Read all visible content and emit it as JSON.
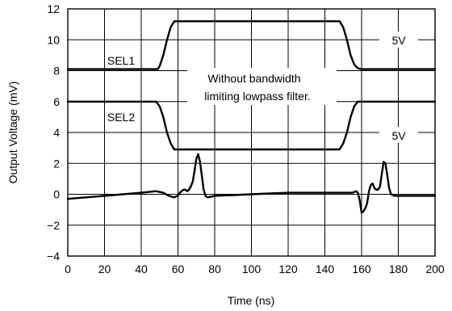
{
  "chart_data": {
    "type": "line",
    "xlabel": "Time (ns)",
    "ylabel": "Output Voltage (mV)",
    "xlim": [
      0,
      200
    ],
    "ylim": [
      -4,
      12
    ],
    "xticks": [
      0,
      20,
      40,
      60,
      80,
      100,
      120,
      140,
      160,
      180,
      200
    ],
    "yticks": [
      -4,
      -2,
      0,
      2,
      4,
      6,
      8,
      10,
      12
    ],
    "ytick_labels": [
      "−4",
      "−2",
      "0",
      "2",
      "4",
      "6",
      "8",
      "10",
      "12"
    ],
    "grid": true,
    "series": [
      {
        "key": "sel1",
        "x": [
          0,
          49,
          50,
          52,
          54,
          56,
          58,
          60,
          148,
          150,
          152,
          154,
          156,
          158,
          160,
          200
        ],
        "y": [
          8.1,
          8.1,
          8.3,
          9.0,
          10.0,
          10.8,
          11.2,
          11.2,
          11.2,
          10.8,
          10.0,
          9.0,
          8.4,
          8.15,
          8.1,
          8.1
        ]
      },
      {
        "key": "sel2",
        "x": [
          0,
          48,
          50,
          52,
          54,
          56,
          58,
          60,
          148,
          150,
          152,
          154,
          156,
          158,
          160,
          200
        ],
        "y": [
          6.0,
          6.0,
          5.7,
          5.0,
          4.0,
          3.3,
          2.9,
          2.9,
          2.9,
          3.3,
          4.0,
          5.0,
          5.7,
          6.0,
          6.0,
          6.0
        ]
      },
      {
        "key": "output",
        "x": [
          0,
          10,
          20,
          30,
          40,
          48,
          52,
          55,
          58,
          60,
          61,
          63,
          64,
          65,
          66,
          67,
          68,
          69,
          70,
          71,
          72,
          73,
          74,
          75,
          76,
          78,
          80,
          90,
          100,
          110,
          120,
          130,
          140,
          150,
          155,
          157,
          158,
          159,
          160,
          161,
          162,
          163,
          164,
          165,
          166,
          167,
          168,
          169,
          170,
          171,
          172,
          173,
          174,
          175,
          176,
          178,
          180,
          190,
          200
        ],
        "y": [
          -0.3,
          -0.2,
          -0.1,
          0.0,
          0.1,
          0.2,
          0.1,
          -0.1,
          -0.2,
          -0.1,
          0.1,
          0.3,
          0.3,
          0.2,
          0.3,
          0.5,
          0.8,
          1.5,
          2.3,
          2.6,
          2.1,
          1.2,
          0.3,
          -0.1,
          -0.2,
          -0.15,
          -0.1,
          -0.05,
          0.0,
          0.05,
          0.1,
          0.1,
          0.1,
          0.1,
          0.1,
          0.2,
          0.1,
          -0.4,
          -1.2,
          -1.1,
          -0.9,
          -0.6,
          0.2,
          0.6,
          0.7,
          0.4,
          0.3,
          0.3,
          0.5,
          1.3,
          2.1,
          2.0,
          1.2,
          0.4,
          0.0,
          -0.1,
          -0.1,
          -0.1,
          -0.1
        ]
      }
    ],
    "annotations": {
      "sel1": "SEL1",
      "sel2": "SEL2",
      "level_upper": "5V",
      "level_lower": "5V",
      "note_line1": "Without bandwidth",
      "note_line2": "limiting lowpass filter."
    }
  }
}
